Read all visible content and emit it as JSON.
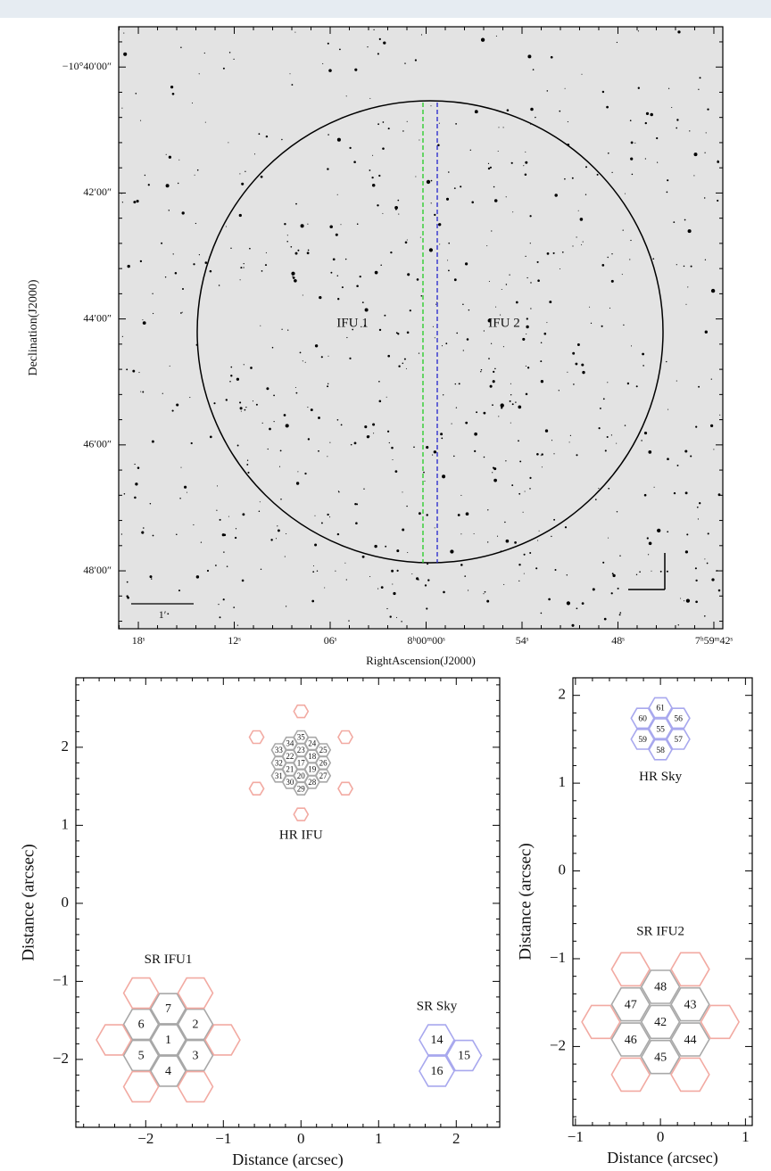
{
  "chart_data": [
    {
      "type": "image",
      "xlabel": "RightAscension(J2000)",
      "ylabel": "Declination(J2000)",
      "xlim": [
        28819.23,
        28781.44
      ],
      "ylim": [
        -10.81533,
        -10.656
      ],
      "xticks": [
        {
          "value": 28818,
          "label": "18ˢ"
        },
        {
          "value": 28812,
          "label": "12ˢ"
        },
        {
          "value": 28806,
          "label": "06ˢ"
        },
        {
          "value": 28800,
          "label": "8ʰ00ᵐ00ˢ"
        },
        {
          "value": 28794,
          "label": "54ˢ"
        },
        {
          "value": 28788,
          "label": "48ˢ"
        },
        {
          "value": 28782,
          "label": "7ʰ59ᵐ42ˢ"
        }
      ],
      "yticks": [
        {
          "value": -10.666667,
          "label": "−10°40′00″"
        },
        {
          "value": -10.7,
          "label": "42′00″"
        },
        {
          "value": -10.733333,
          "label": "44′00″"
        },
        {
          "value": -10.766667,
          "label": "46′00″"
        },
        {
          "value": -10.8,
          "label": "48′00″"
        }
      ],
      "annotations": [
        "IFU 1",
        "IFU 2"
      ],
      "scale_label": "1′"
    },
    {
      "type": "fiber_layout",
      "xlabel": "Distance (arcsec)",
      "ylabel": "Distance (arcsec)",
      "xlim": [
        -2.9,
        2.56
      ],
      "ylim": [
        -2.87,
        2.89
      ],
      "xticks": [
        {
          "value": -2,
          "label": "−2"
        },
        {
          "value": -1,
          "label": "−1"
        },
        0,
        1,
        2
      ],
      "yticks": [
        {
          "value": -2,
          "label": "−2"
        },
        {
          "value": -1,
          "label": "−1"
        },
        0,
        1,
        2
      ],
      "series": [
        {
          "name": "SR IFU1",
          "color": "#a8a8a8",
          "outer_color": "#f2aaa2",
          "x": [
            -1.71,
            -1.36,
            -1.36,
            -1.71,
            -2.06,
            -2.06,
            -1.71,
            -2.06,
            -1.36,
            -2.41,
            -1.01,
            -2.06,
            -1.36
          ],
          "y": [
            -1.75,
            -1.55,
            -1.95,
            -2.15,
            -1.95,
            -1.55,
            -1.35,
            -1.15,
            -1.15,
            -1.75,
            -1.75,
            -2.35,
            -2.35
          ],
          "labels": [
            "1",
            "2",
            "3",
            "4",
            "5",
            "6",
            "7",
            null,
            null,
            null,
            null,
            null,
            null
          ]
        },
        {
          "name": "HR IFU",
          "color": "#a8a8a8",
          "outer_color": "#f2aaa2",
          "x": [
            0,
            0.143,
            0.143,
            0,
            -0.143,
            -0.143,
            0,
            0.143,
            0.286,
            0.286,
            0.286,
            0.143,
            0,
            -0.143,
            -0.286,
            -0.286,
            -0.286,
            -0.143,
            0,
            0,
            0.572,
            0.572,
            0,
            -0.572,
            -0.572
          ],
          "y": [
            1.8,
            1.883,
            1.718,
            1.635,
            1.718,
            1.883,
            1.965,
            2.048,
            1.965,
            1.8,
            1.635,
            1.553,
            1.47,
            1.553,
            1.635,
            1.8,
            1.965,
            2.048,
            2.13,
            2.46,
            2.13,
            1.47,
            1.14,
            1.47,
            2.13
          ],
          "labels": [
            "17",
            "18",
            "19",
            "20",
            "21",
            "22",
            "23",
            "24",
            "25",
            "26",
            "27",
            "28",
            "29",
            "30",
            "31",
            "32",
            "33",
            "34",
            "35",
            null,
            null,
            null,
            null,
            null,
            null
          ]
        },
        {
          "name": "SR Sky",
          "color": "#a8a8ee",
          "outer_color": "#a8a8ee",
          "x": [
            1.75,
            2.1,
            1.75
          ],
          "y": [
            -1.75,
            -1.95,
            -2.15
          ],
          "labels": [
            "14",
            "15",
            "16"
          ]
        }
      ]
    },
    {
      "type": "fiber_layout",
      "xlabel": "Distance (arcsec)",
      "ylabel": "Distance (arcsec)",
      "xlim": [
        -1.03,
        1.08
      ],
      "ylim": [
        -2.9,
        2.2
      ],
      "xticks": [
        {
          "value": -1,
          "label": "−1"
        },
        0,
        1
      ],
      "yticks": [
        {
          "value": -2,
          "label": "−2"
        },
        {
          "value": -1,
          "label": "−1"
        },
        0,
        1,
        2
      ],
      "series": [
        {
          "name": "HR Sky",
          "color": "#a8a8ee",
          "outer_color": "#a8a8ee",
          "x": [
            0,
            0.21,
            0.21,
            0,
            -0.21,
            -0.21,
            0
          ],
          "y": [
            1.62,
            1.74,
            1.5,
            1.38,
            1.5,
            1.74,
            1.86
          ],
          "labels": [
            "55",
            "56",
            "57",
            "58",
            "59",
            "60",
            "61"
          ]
        },
        {
          "name": "SR IFU2",
          "color": "#a8a8a8",
          "outer_color": "#f2aaa2",
          "x": [
            0,
            0.35,
            0.35,
            0,
            -0.35,
            -0.35,
            0,
            -0.35,
            0.35,
            -0.7,
            0.7,
            -0.35,
            0.35
          ],
          "y": [
            -1.72,
            -1.52,
            -1.92,
            -2.12,
            -1.92,
            -1.52,
            -1.32,
            -1.12,
            -1.12,
            -1.72,
            -1.72,
            -2.32,
            -2.32
          ],
          "labels": [
            "42",
            "43",
            "44",
            "45",
            "46",
            "47",
            "48",
            null,
            null,
            null,
            null,
            null,
            null
          ]
        }
      ]
    }
  ]
}
